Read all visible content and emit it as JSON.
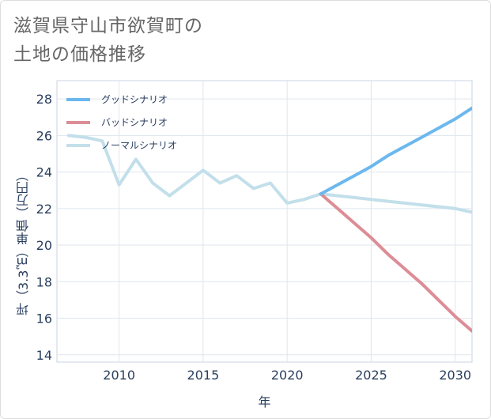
{
  "title_line1": "滋賀県守山市欲賀町の",
  "title_line2": "土地の価格推移",
  "chart_data": {
    "type": "line",
    "xlabel": "年",
    "ylabel": "坪（3.3㎡）単価（万円）",
    "xlim": [
      2006.3,
      2031
    ],
    "ylim": [
      13.6,
      29
    ],
    "x_ticks": [
      2010,
      2015,
      2020,
      2025,
      2030
    ],
    "y_ticks": [
      14,
      16,
      18,
      20,
      22,
      24,
      26,
      28
    ],
    "grid": true,
    "legend_position": "top-left",
    "series": [
      {
        "name": "グッドシナリオ",
        "color": "#6cb8ee",
        "x": [
          2022,
          2023,
          2024,
          2025,
          2026,
          2027,
          2028,
          2029,
          2030,
          2031
        ],
        "y": [
          22.8,
          23.3,
          23.8,
          24.3,
          24.9,
          25.4,
          25.9,
          26.4,
          26.9,
          27.5
        ]
      },
      {
        "name": "バッドシナリオ",
        "color": "#dc8d96",
        "x": [
          2022,
          2023,
          2024,
          2025,
          2026,
          2027,
          2028,
          2029,
          2030,
          2031
        ],
        "y": [
          22.8,
          22.0,
          21.2,
          20.4,
          19.5,
          18.7,
          17.9,
          17.0,
          16.1,
          15.3
        ]
      },
      {
        "name": "ノーマルシナリオ",
        "color": "#c2dfea",
        "x": [
          2007,
          2008,
          2009,
          2010,
          2011,
          2012,
          2013,
          2014,
          2015,
          2016,
          2017,
          2018,
          2019,
          2020,
          2021,
          2022,
          2023,
          2024,
          2025,
          2026,
          2027,
          2028,
          2029,
          2030,
          2031
        ],
        "y": [
          26.0,
          25.9,
          25.7,
          23.3,
          24.7,
          23.4,
          22.7,
          23.4,
          24.1,
          23.4,
          23.8,
          23.1,
          23.4,
          22.3,
          22.5,
          22.8,
          22.7,
          22.6,
          22.5,
          22.4,
          22.3,
          22.2,
          22.1,
          22.0,
          21.8
        ]
      }
    ]
  }
}
